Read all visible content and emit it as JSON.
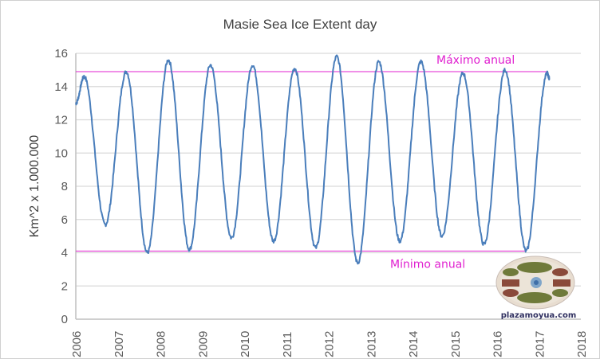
{
  "chart_data": {
    "type": "line",
    "title": "Masie Sea Ice Extent day",
    "xlabel": "",
    "ylabel": "Km^2 x 1.000.000",
    "xlim": [
      2006,
      2018
    ],
    "ylim": [
      0,
      16
    ],
    "x_ticks": [
      "2006",
      "2007",
      "2008",
      "2009",
      "2010",
      "2011",
      "2012",
      "2013",
      "2014",
      "2015",
      "2016",
      "2017",
      "2018"
    ],
    "y_ticks": [
      "0",
      "2",
      "4",
      "6",
      "8",
      "10",
      "12",
      "14",
      "16"
    ],
    "grid": true,
    "series": [
      {
        "name": "Sea Ice Extent",
        "color": "#4a7ebb",
        "key_points": [
          [
            2006.0,
            13.0
          ],
          [
            2006.2,
            14.6
          ],
          [
            2006.7,
            5.7
          ],
          [
            2007.2,
            14.9
          ],
          [
            2007.7,
            4.0
          ],
          [
            2008.2,
            15.6
          ],
          [
            2008.7,
            4.2
          ],
          [
            2009.2,
            15.3
          ],
          [
            2009.7,
            4.9
          ],
          [
            2010.2,
            15.3
          ],
          [
            2010.7,
            4.7
          ],
          [
            2011.2,
            15.1
          ],
          [
            2011.7,
            4.3
          ],
          [
            2012.2,
            15.8
          ],
          [
            2012.7,
            3.4
          ],
          [
            2013.2,
            15.5
          ],
          [
            2013.7,
            4.7
          ],
          [
            2014.2,
            15.5
          ],
          [
            2014.7,
            5.0
          ],
          [
            2015.2,
            14.8
          ],
          [
            2015.7,
            4.5
          ],
          [
            2016.2,
            15.0
          ],
          [
            2016.7,
            4.1
          ],
          [
            2017.2,
            14.8
          ],
          [
            2017.25,
            14.5
          ]
        ]
      }
    ],
    "reference_lines": [
      {
        "label": "Máximo anual",
        "value": 14.9,
        "x_range": [
          2006,
          2017.2
        ],
        "color": "#e020d0"
      },
      {
        "label": "Mínimo anual",
        "value": 4.1,
        "x_range": [
          2006,
          2016.7
        ],
        "color": "#e020d0"
      }
    ]
  },
  "watermark": {
    "text": "plazamoyua.com"
  }
}
